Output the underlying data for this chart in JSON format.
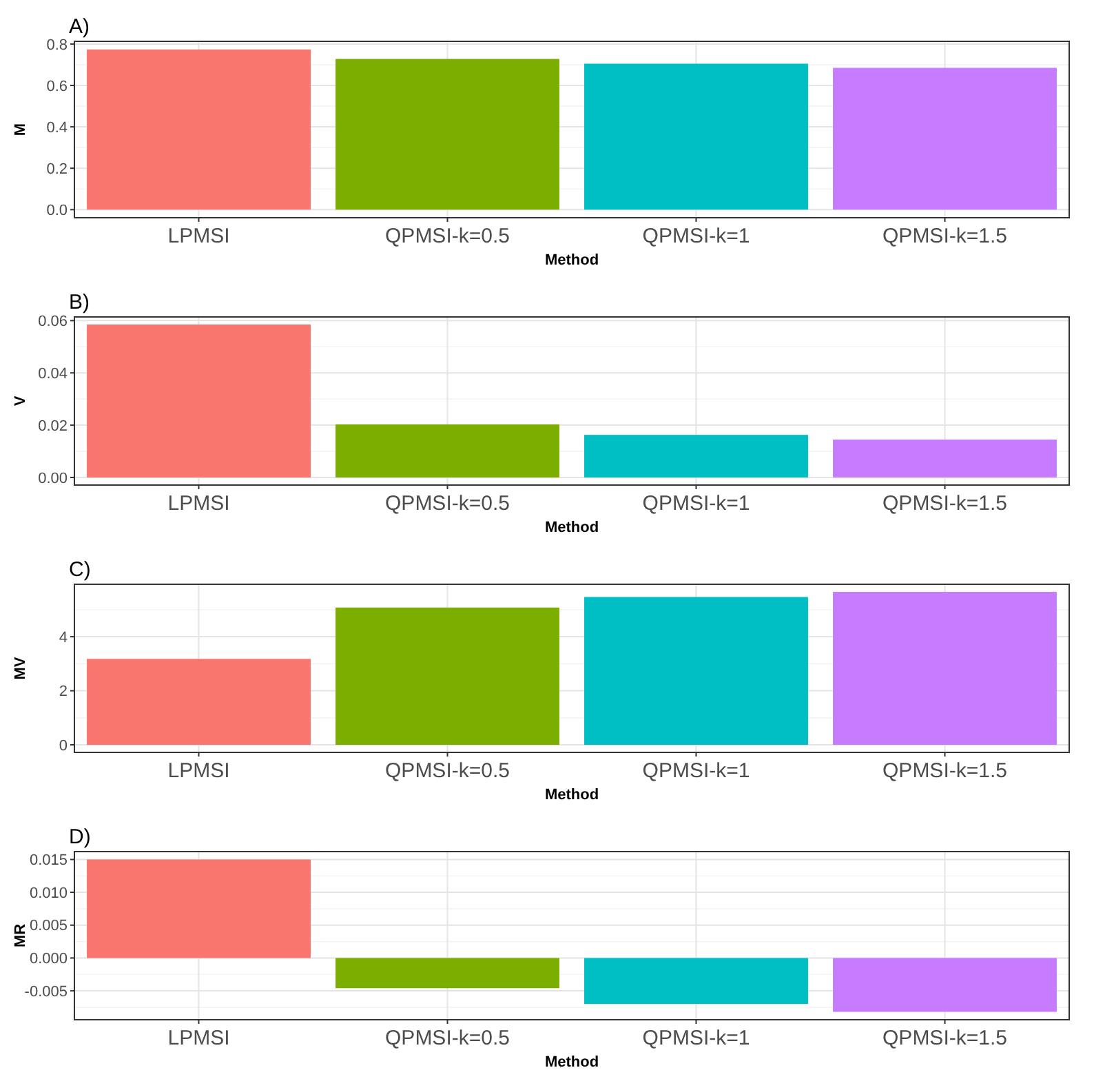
{
  "chart_data": [
    {
      "type": "bar",
      "title": "A)",
      "xlabel": "Method",
      "ylabel": "M",
      "categories": [
        "LPMSI",
        "QPMSI-k=0.5",
        "QPMSI-k=1",
        "QPMSI-k=1.5"
      ],
      "values": [
        0.774,
        0.728,
        0.705,
        0.685
      ],
      "colors": [
        "#f8766d",
        "#7cae00",
        "#00bfc4",
        "#c77cff"
      ],
      "ylim": [
        -0.039,
        0.813
      ],
      "yticks": [
        {
          "value": 0,
          "label": "0.0"
        },
        {
          "value": 0.2,
          "label": "0.2"
        },
        {
          "value": 0.4,
          "label": "0.4"
        },
        {
          "value": 0.6,
          "label": "0.6"
        },
        {
          "value": 0.8,
          "label": "0.8"
        }
      ],
      "grid": true
    },
    {
      "type": "bar",
      "title": "B)",
      "xlabel": "Method",
      "ylabel": "V",
      "categories": [
        "LPMSI",
        "QPMSI-k=0.5",
        "QPMSI-k=1",
        "QPMSI-k=1.5"
      ],
      "values": [
        0.0585,
        0.0203,
        0.0163,
        0.0145
      ],
      "colors": [
        "#f8766d",
        "#7cae00",
        "#00bfc4",
        "#c77cff"
      ],
      "ylim": [
        -0.0029,
        0.0614
      ],
      "yticks": [
        {
          "value": 0,
          "label": "0.00"
        },
        {
          "value": 0.02,
          "label": "0.02"
        },
        {
          "value": 0.04,
          "label": "0.04"
        },
        {
          "value": 0.06,
          "label": "0.06"
        }
      ],
      "grid": true
    },
    {
      "type": "bar",
      "title": "C)",
      "xlabel": "Method",
      "ylabel": "MV",
      "categories": [
        "LPMSI",
        "QPMSI-k=0.5",
        "QPMSI-k=1",
        "QPMSI-k=1.5"
      ],
      "values": [
        3.18,
        5.08,
        5.47,
        5.66
      ],
      "colors": [
        "#f8766d",
        "#7cae00",
        "#00bfc4",
        "#c77cff"
      ],
      "ylim": [
        -0.28,
        5.94
      ],
      "yticks": [
        0,
        2,
        4
      ],
      "grid": true
    },
    {
      "type": "bar",
      "title": "D)",
      "xlabel": "Method",
      "ylabel": "MR",
      "categories": [
        "LPMSI",
        "QPMSI-k=0.5",
        "QPMSI-k=1",
        "QPMSI-k=1.5"
      ],
      "values": [
        0.015,
        -0.0046,
        -0.007,
        -0.0082
      ],
      "colors": [
        "#f8766d",
        "#7cae00",
        "#00bfc4",
        "#c77cff"
      ],
      "ylim": [
        -0.0094,
        0.0162
      ],
      "yticks": [
        {
          "value": -0.005,
          "label": "-0.005"
        },
        {
          "value": 0,
          "label": "0.000"
        },
        {
          "value": 0.005,
          "label": "0.005"
        },
        {
          "value": 0.01,
          "label": "0.010"
        },
        {
          "value": 0.015,
          "label": "0.015"
        }
      ],
      "grid": true
    }
  ]
}
